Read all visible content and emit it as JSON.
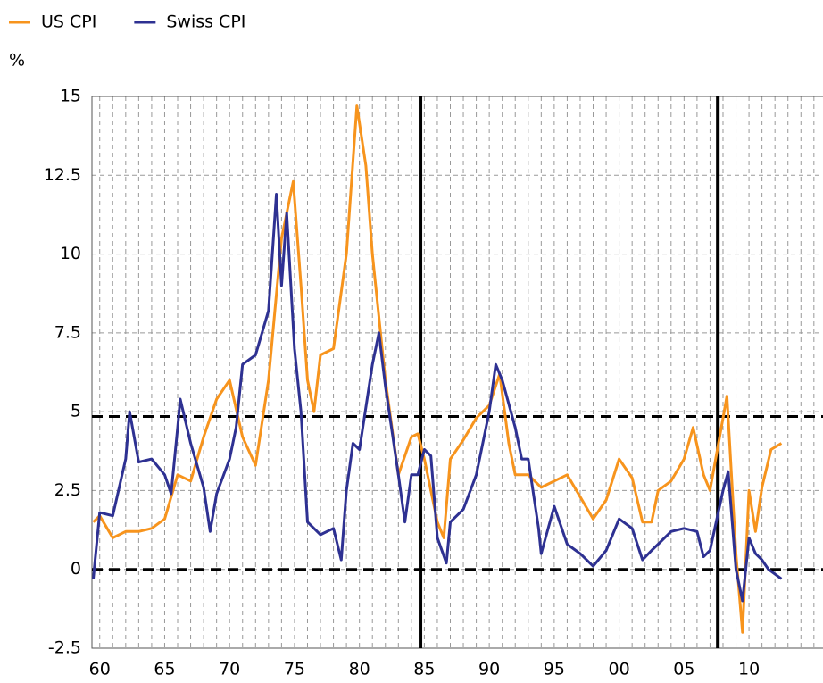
{
  "chart_data": {
    "type": "line",
    "y_unit_label": "%",
    "xlim": [
      1959.4,
      2015.7
    ],
    "ylim": [
      -2.5,
      15
    ],
    "xticks": [
      {
        "value": 1960,
        "label": "60"
      },
      {
        "value": 1965,
        "label": "65"
      },
      {
        "value": 1970,
        "label": "70"
      },
      {
        "value": 1975,
        "label": "75"
      },
      {
        "value": 1980,
        "label": "80"
      },
      {
        "value": 1985,
        "label": "85"
      },
      {
        "value": 1990,
        "label": "90"
      },
      {
        "value": 1995,
        "label": "95"
      },
      {
        "value": 2000,
        "label": "00"
      },
      {
        "value": 2005,
        "label": "05"
      },
      {
        "value": 2010,
        "label": "10"
      }
    ],
    "yticks": [
      -2.5,
      0,
      2.5,
      5,
      7.5,
      10,
      12.5,
      15
    ],
    "xgrid": [
      1960,
      1961,
      1962,
      1963,
      1964,
      1965,
      1966,
      1967,
      1968,
      1969,
      1970,
      1971,
      1972,
      1973,
      1974,
      1975,
      1976,
      1977,
      1978,
      1979,
      1980,
      1981,
      1982,
      1983,
      1984,
      1985,
      1986,
      1987,
      1988,
      1989,
      1990,
      1991,
      1992,
      1993,
      1994,
      1995,
      1996,
      1997,
      1998,
      1999,
      2000,
      2001,
      2002,
      2003,
      2004,
      2005,
      2006,
      2007,
      2008,
      2009,
      2010,
      2011,
      2012,
      2013,
      2014,
      2015
    ],
    "grid": true,
    "vlines": [
      1984.7,
      2007.6
    ],
    "hlines": [
      4.85,
      0
    ],
    "legend": "top-left",
    "series": [
      {
        "name": "US CPI",
        "color": "#f7941d",
        "x": [
          1959.5,
          1960,
          1961,
          1962,
          1963,
          1964,
          1965,
          1966,
          1967,
          1968,
          1969,
          1970,
          1971,
          1972,
          1973,
          1974,
          1974.9,
          1975.5,
          1976,
          1976.5,
          1977,
          1978,
          1979,
          1979.8,
          1980.5,
          1981,
          1982,
          1983,
          1984,
          1984.5,
          1985,
          1986,
          1986.5,
          1987,
          1988,
          1989,
          1990,
          1990.8,
          1991.5,
          1992,
          1993,
          1994,
          1995,
          1996,
          1997,
          1998,
          1999,
          2000,
          2001,
          2001.8,
          2002.5,
          2003,
          2004,
          2005,
          2005.7,
          2006.5,
          2007,
          2008,
          2008.3,
          2009,
          2009.5,
          2010,
          2010.5,
          2011,
          2011.7,
          2012.5
        ],
        "values": [
          1.5,
          1.7,
          1.0,
          1.2,
          1.2,
          1.3,
          1.6,
          3.0,
          2.8,
          4.2,
          5.4,
          6.0,
          4.2,
          3.3,
          6.0,
          10.5,
          12.3,
          9.0,
          6.0,
          5.0,
          6.8,
          7.0,
          10.0,
          14.7,
          12.8,
          10.0,
          6.0,
          3.0,
          4.2,
          4.3,
          3.5,
          1.5,
          1.0,
          3.5,
          4.1,
          4.8,
          5.2,
          6.2,
          4.0,
          3.0,
          3.0,
          2.6,
          2.8,
          3.0,
          2.3,
          1.6,
          2.2,
          3.5,
          2.9,
          1.5,
          1.5,
          2.5,
          2.8,
          3.5,
          4.5,
          3.0,
          2.5,
          4.8,
          5.5,
          0.5,
          -2.0,
          2.5,
          1.2,
          2.6,
          3.8,
          4.0
        ]
      },
      {
        "name": "Swiss CPI",
        "color": "#2e3192",
        "x": [
          1959.5,
          1960,
          1961,
          1962,
          1962.3,
          1963,
          1964,
          1965,
          1965.5,
          1966,
          1966.2,
          1967,
          1968,
          1968.5,
          1969,
          1970,
          1970.5,
          1971,
          1972,
          1973,
          1973.6,
          1974,
          1974.4,
          1975,
          1975.5,
          1976,
          1977,
          1978,
          1978.6,
          1979,
          1979.5,
          1980,
          1981,
          1981.5,
          1982,
          1983,
          1983.5,
          1984,
          1984.5,
          1985,
          1985.5,
          1986,
          1986.7,
          1987,
          1988,
          1989,
          1990,
          1990.5,
          1991,
          1992,
          1992.5,
          1993,
          1993.8,
          1994,
          1995,
          1996,
          1997,
          1998,
          1999,
          2000,
          2001,
          2001.8,
          2002.5,
          2003,
          2004,
          2005,
          2006,
          2006.5,
          2007,
          2008,
          2008.4,
          2009,
          2009.5,
          2010,
          2010.5,
          2011,
          2011.5,
          2012.5
        ],
        "values": [
          -0.3,
          1.8,
          1.7,
          3.5,
          5.0,
          3.4,
          3.5,
          3.0,
          2.4,
          4.5,
          5.4,
          4.0,
          2.6,
          1.2,
          2.4,
          3.5,
          4.5,
          6.5,
          6.8,
          8.2,
          11.9,
          9.0,
          11.3,
          7.0,
          5.0,
          1.5,
          1.1,
          1.3,
          0.3,
          2.5,
          4.0,
          3.8,
          6.5,
          7.5,
          5.8,
          3.0,
          1.5,
          3.0,
          3.0,
          3.8,
          3.6,
          1.0,
          0.2,
          1.5,
          1.9,
          3.0,
          5.0,
          6.5,
          6.0,
          4.5,
          3.5,
          3.5,
          1.3,
          0.5,
          2.0,
          0.8,
          0.5,
          0.1,
          0.6,
          1.6,
          1.3,
          0.3,
          0.6,
          0.8,
          1.2,
          1.3,
          1.2,
          0.4,
          0.6,
          2.5,
          3.1,
          0.0,
          -1.0,
          1.0,
          0.5,
          0.3,
          0.0,
          -0.3
        ]
      }
    ]
  }
}
